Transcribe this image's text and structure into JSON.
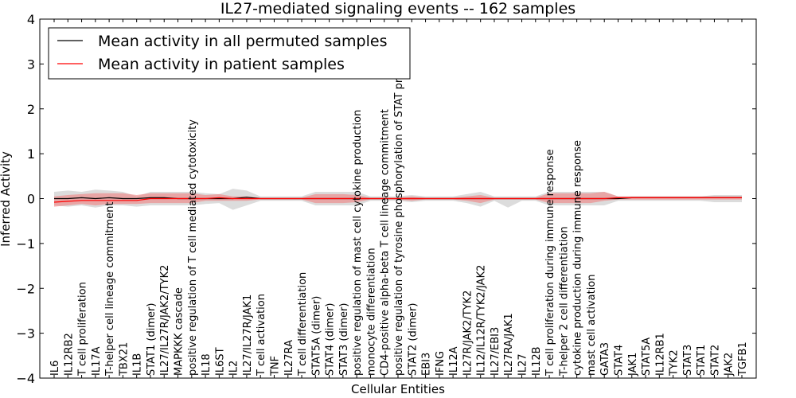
{
  "chart_data": {
    "type": "line",
    "title": "IL27-mediated signaling events -- 162 samples",
    "xlabel": "Cellular Entities",
    "ylabel": "Inferred Activity",
    "ylim": [
      -4,
      4
    ],
    "yticks": [
      -4,
      -3,
      -2,
      -1,
      0,
      1,
      2,
      3,
      4
    ],
    "legend_position": "top-left",
    "colors": {
      "permuted": "#000000",
      "patient": "#ff0000",
      "patient_band": "#f08080",
      "permuted_band": "#c0c0c0"
    },
    "categories": [
      "IL6",
      "IL12RB2",
      "T cell proliferation",
      "IL17A",
      "T-helper cell lineage commitment",
      "TBX21",
      "IL1B",
      "STAT1 (dimer)",
      "IL27/IL27R/JAK2/TYK2",
      "MAPKKK cascade",
      "positive regulation of T cell mediated cytotoxicity",
      "IL18",
      "IL6ST",
      "IL2",
      "IL27/IL27R/JAK1",
      "T cell activation",
      "TNF",
      "IL27RA",
      "T cell differentiation",
      "STAT5A (dimer)",
      "STAT4 (dimer)",
      "STAT3 (dimer)",
      "positive regulation of mast cell cytokine production",
      "monocyte differentiation",
      "CD4-positive alpha-beta T cell lineage commitment",
      "positive regulation of tyrosine phosphorylation of STAT protein",
      "STAT2 (dimer)",
      "EBI3",
      "IFNG",
      "IL12A",
      "IL27R/JAK2/TYK2",
      "IL12/IL12R/TYK2/JAK2",
      "IL27/EBI3",
      "IL27RA/JAK1",
      "IL27",
      "IL12B",
      "T cell proliferation during immune response",
      "T-helper 2 cell differentiation",
      "cytokine production during immune response",
      "mast cell activation",
      "GATA3",
      "STAT4",
      "JAK1",
      "STAT5A",
      "IL12RB1",
      "TYK2",
      "STAT3",
      "STAT1",
      "STAT2",
      "JAK2",
      "TGFB1"
    ],
    "series": [
      {
        "name": "Mean activity in all permuted samples",
        "values": [
          0.0,
          0.0,
          0.02,
          0.0,
          0.02,
          0.0,
          0.0,
          0.02,
          0.02,
          0.0,
          0.0,
          0.0,
          0.0,
          0.0,
          0.03,
          0.0,
          0.0,
          0.0,
          0.0,
          0.0,
          0.0,
          0.0,
          0.0,
          0.0,
          0.0,
          0.0,
          0.0,
          0.0,
          0.0,
          0.0,
          0.0,
          0.0,
          0.0,
          0.0,
          0.0,
          0.0,
          0.0,
          0.0,
          0.0,
          0.0,
          0.0,
          0.0,
          0.02,
          0.02,
          0.02,
          0.02,
          0.02,
          0.02,
          0.02,
          0.02,
          0.02
        ],
        "band_low": [
          -0.15,
          -0.18,
          -0.15,
          -0.2,
          -0.15,
          -0.15,
          -0.18,
          -0.15,
          -0.15,
          -0.15,
          -0.15,
          -0.12,
          -0.1,
          -0.25,
          -0.15,
          -0.05,
          -0.05,
          -0.05,
          -0.05,
          -0.15,
          -0.15,
          -0.15,
          -0.15,
          -0.05,
          -0.05,
          -0.05,
          -0.08,
          -0.05,
          -0.05,
          -0.05,
          -0.1,
          -0.18,
          -0.05,
          -0.2,
          -0.05,
          -0.05,
          -0.15,
          -0.15,
          -0.15,
          -0.15,
          -0.15,
          -0.05,
          -0.05,
          -0.05,
          -0.05,
          -0.05,
          -0.05,
          -0.05,
          -0.08,
          -0.08,
          -0.08
        ],
        "band_high": [
          0.15,
          0.18,
          0.15,
          0.2,
          0.18,
          0.15,
          0.05,
          0.15,
          0.15,
          0.15,
          0.15,
          0.12,
          0.1,
          0.22,
          0.18,
          0.05,
          0.05,
          0.05,
          0.05,
          0.15,
          0.15,
          0.15,
          0.15,
          0.05,
          0.05,
          0.05,
          0.08,
          0.05,
          0.05,
          0.05,
          0.1,
          0.15,
          0.05,
          0.05,
          0.05,
          0.05,
          0.15,
          0.15,
          0.15,
          0.15,
          0.15,
          0.05,
          0.05,
          0.05,
          0.05,
          0.05,
          0.05,
          0.05,
          0.08,
          0.08,
          0.08
        ]
      },
      {
        "name": "Mean activity in patient samples",
        "values": [
          -0.08,
          -0.06,
          -0.04,
          -0.04,
          -0.04,
          -0.04,
          -0.04,
          0.0,
          0.0,
          0.0,
          0.0,
          0.0,
          0.02,
          0.0,
          0.0,
          0.0,
          0.0,
          0.0,
          0.0,
          0.0,
          0.0,
          0.0,
          0.0,
          0.0,
          0.0,
          0.0,
          0.0,
          0.0,
          0.0,
          0.0,
          0.0,
          0.0,
          0.0,
          0.0,
          0.0,
          0.0,
          0.0,
          0.0,
          0.0,
          0.0,
          0.0,
          0.02,
          0.02,
          0.02,
          0.02,
          0.02,
          0.02,
          0.02,
          0.02,
          0.02,
          0.02
        ],
        "band_low": [
          -0.18,
          -0.15,
          -0.12,
          -0.15,
          -0.12,
          -0.12,
          -0.12,
          -0.1,
          -0.1,
          -0.1,
          -0.1,
          -0.05,
          -0.05,
          -0.05,
          -0.05,
          -0.02,
          -0.02,
          -0.02,
          -0.02,
          -0.1,
          -0.1,
          -0.1,
          -0.08,
          -0.02,
          -0.02,
          -0.02,
          -0.05,
          -0.02,
          -0.02,
          -0.02,
          -0.05,
          -0.1,
          -0.02,
          -0.02,
          -0.02,
          -0.02,
          -0.1,
          -0.1,
          -0.1,
          -0.1,
          -0.05,
          -0.02,
          -0.02,
          -0.02,
          -0.02,
          -0.02,
          -0.02,
          -0.02,
          -0.02,
          -0.02,
          -0.02
        ],
        "band_high": [
          0.05,
          0.08,
          0.1,
          0.12,
          0.12,
          0.12,
          0.08,
          0.12,
          0.12,
          0.12,
          0.12,
          0.08,
          0.1,
          0.05,
          0.05,
          0.02,
          0.02,
          0.02,
          0.02,
          0.1,
          0.1,
          0.1,
          0.08,
          0.02,
          0.02,
          0.02,
          0.05,
          0.02,
          0.02,
          0.02,
          0.05,
          0.08,
          0.02,
          0.02,
          0.02,
          0.02,
          0.12,
          0.12,
          0.12,
          0.12,
          0.15,
          0.05,
          0.05,
          0.05,
          0.05,
          0.05,
          0.05,
          0.05,
          0.05,
          0.05,
          0.05
        ]
      }
    ]
  }
}
